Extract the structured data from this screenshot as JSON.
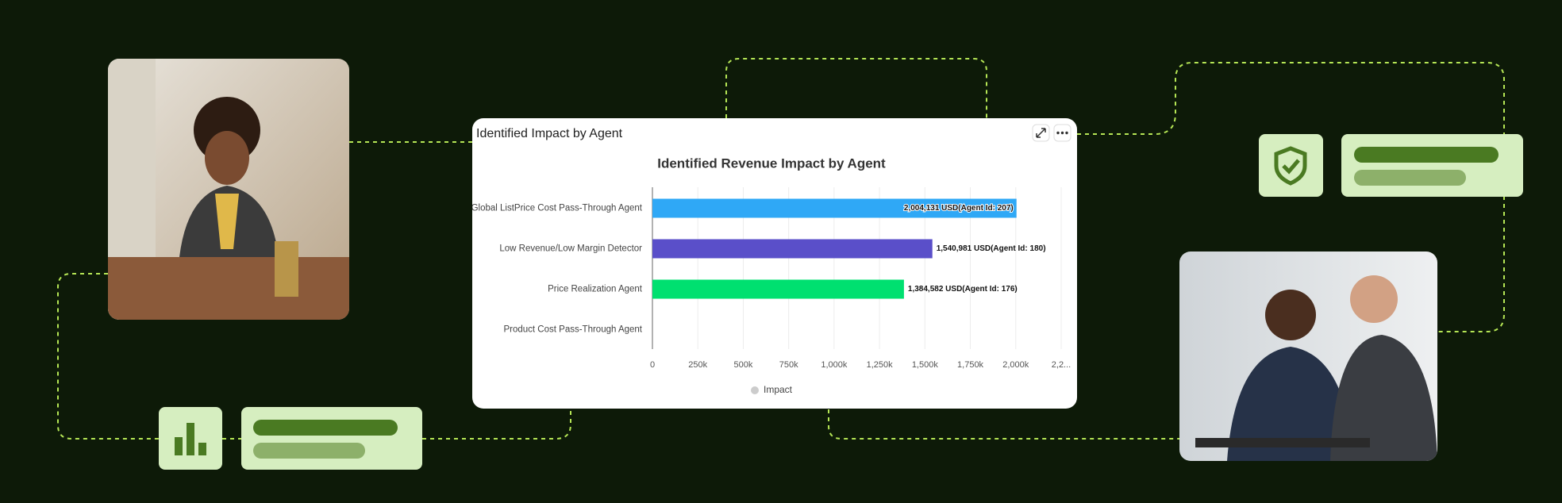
{
  "panel_title": "Identified Impact by Agent",
  "chart_data": {
    "type": "hbar",
    "title": "Identified Revenue Impact by Agent",
    "categories": [
      "Global ListPrice Cost Pass-Through Agent",
      "Low Revenue/Low Margin Detector",
      "Price Realization Agent",
      "Product Cost Pass-Through Agent"
    ],
    "series": [
      {
        "name": "Impact",
        "color": "#cccccc",
        "bar_colors": [
          "#2fa8f6",
          "#5a4fc9",
          "#00e070",
          "#cccccc"
        ],
        "values": [
          2004131,
          1540981,
          1384582,
          null
        ],
        "value_labels": [
          "2,004,131 USD(Agent Id: 207)",
          "1,540,981 USD(Agent Id: 180)",
          "1,384,582 USD(Agent Id: 176)",
          null
        ]
      }
    ],
    "xlim": [
      0,
      2250000
    ],
    "xticks": [
      0,
      {
        "value": 250000,
        "label": "250k"
      },
      {
        "value": 500000,
        "label": "500k"
      },
      {
        "value": 750000,
        "label": "750k"
      },
      {
        "value": 1000000,
        "label": "1,000k"
      },
      {
        "value": 1250000,
        "label": "1,250k"
      },
      {
        "value": 1500000,
        "label": "1,500k"
      },
      {
        "value": 1750000,
        "label": "1,750k"
      },
      {
        "value": 2000000,
        "label": "2,000k"
      },
      {
        "value": 2250000,
        "label": "2,2..."
      }
    ],
    "grid": true,
    "legend": "bottom"
  }
}
